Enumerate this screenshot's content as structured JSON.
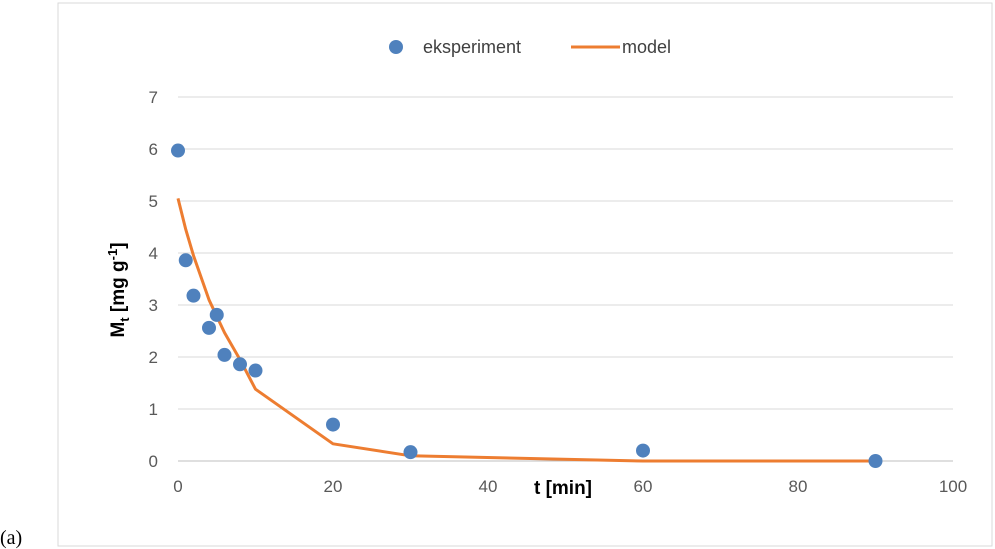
{
  "panel_label": "(a)",
  "chart_data": {
    "type": "scatter",
    "title": "",
    "xlabel": "t  [min]",
    "ylabel_main": "M",
    "ylabel_sub": "t",
    "ylabel_rest": " [mg g",
    "ylabel_sup": "-1",
    "ylabel_close": "]",
    "xlim": [
      0,
      100
    ],
    "ylim": [
      0,
      7
    ],
    "xticks": [
      0,
      20,
      40,
      60,
      80,
      100
    ],
    "yticks": [
      0,
      1,
      2,
      3,
      4,
      5,
      6,
      7
    ],
    "grid": true,
    "legend_position": "top",
    "series": [
      {
        "name": "eksperiment",
        "kind": "scatter",
        "color": "#4f81bd",
        "x": [
          0,
          1,
          2,
          4,
          5,
          6,
          8,
          10,
          20,
          30,
          60,
          90
        ],
        "y": [
          5.97,
          3.86,
          3.18,
          2.56,
          2.81,
          2.04,
          1.86,
          1.74,
          0.7,
          0.17,
          0.2,
          0.0
        ]
      },
      {
        "name": "model",
        "kind": "line",
        "color": "#ed7d31",
        "x": [
          0,
          1,
          2,
          4,
          5,
          6,
          8,
          10,
          20,
          30,
          60,
          90
        ],
        "y": [
          5.05,
          4.45,
          3.95,
          3.1,
          2.78,
          2.47,
          1.95,
          1.38,
          0.33,
          0.1,
          0.0,
          0.0
        ]
      }
    ]
  }
}
